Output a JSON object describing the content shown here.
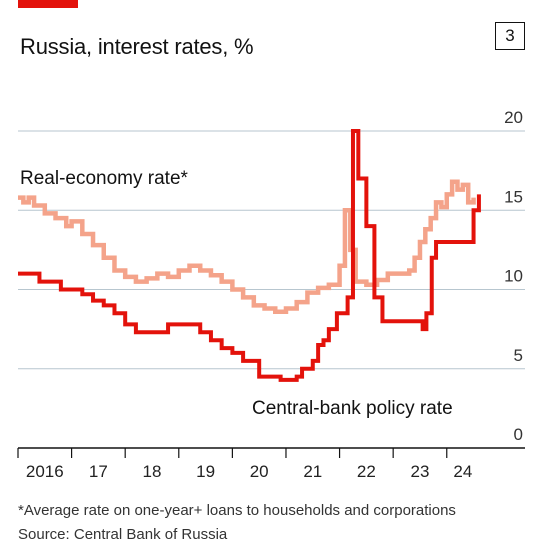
{
  "header": {
    "title": "Russia, interest rates, %",
    "chart_number": "3"
  },
  "footer": {
    "footnote": "*Average rate on one-year+ loans to households and corporations",
    "source": "Source: Central Bank of Russia"
  },
  "colors": {
    "brand_red": "#e3120b",
    "policy_rate": "#e3120b",
    "real_economy_rate": "#f4a38a",
    "grid": "#b7c6cf",
    "axis": "#121212"
  },
  "chart_data": {
    "type": "line",
    "title": "Russia, interest rates, %",
    "xlabel": "",
    "ylabel": "",
    "xlim": [
      2016.0,
      2024.9
    ],
    "ylim": [
      0,
      20
    ],
    "y_ticks": [
      0,
      5,
      10,
      15,
      20
    ],
    "x_tick_labels": [
      {
        "x": 2016.5,
        "label": "2016"
      },
      {
        "x": 2017.5,
        "label": "17"
      },
      {
        "x": 2018.5,
        "label": "18"
      },
      {
        "x": 2019.5,
        "label": "19"
      },
      {
        "x": 2020.5,
        "label": "20"
      },
      {
        "x": 2021.5,
        "label": "21"
      },
      {
        "x": 2022.5,
        "label": "22"
      },
      {
        "x": 2023.5,
        "label": "23"
      },
      {
        "x": 2024.3,
        "label": "24"
      }
    ],
    "grid": true,
    "series": [
      {
        "name": "Real-economy rate*",
        "step": true,
        "x": [
          2016.0,
          2016.1,
          2016.2,
          2016.3,
          2016.5,
          2016.7,
          2016.9,
          2017.0,
          2017.2,
          2017.4,
          2017.6,
          2017.8,
          2018.0,
          2018.2,
          2018.4,
          2018.6,
          2018.8,
          2019.0,
          2019.2,
          2019.4,
          2019.6,
          2019.8,
          2020.0,
          2020.2,
          2020.4,
          2020.6,
          2020.8,
          2021.0,
          2021.2,
          2021.4,
          2021.6,
          2021.8,
          2022.0,
          2022.1,
          2022.2,
          2022.3,
          2022.5,
          2022.7,
          2022.9,
          2023.1,
          2023.3,
          2023.4,
          2023.5,
          2023.6,
          2023.7,
          2023.8,
          2023.9,
          2024.0,
          2024.1,
          2024.2,
          2024.3,
          2024.4,
          2024.5
        ],
        "y": [
          15.8,
          15.5,
          15.8,
          15.3,
          14.8,
          14.5,
          14.0,
          14.3,
          13.5,
          12.8,
          12.0,
          11.2,
          10.8,
          10.5,
          10.7,
          11.0,
          10.8,
          11.2,
          11.5,
          11.2,
          10.9,
          10.5,
          10.0,
          9.5,
          9.0,
          8.8,
          8.6,
          8.8,
          9.2,
          9.8,
          10.1,
          10.3,
          11.5,
          15.0,
          12.5,
          10.5,
          10.3,
          10.6,
          11.0,
          11.0,
          11.2,
          12.0,
          13.0,
          13.8,
          14.5,
          15.5,
          15.2,
          16.0,
          16.8,
          16.3,
          16.6,
          15.5,
          15.8
        ]
      },
      {
        "name": "Central-bank policy rate",
        "step": true,
        "x": [
          2016.0,
          2016.4,
          2016.8,
          2017.2,
          2017.4,
          2017.6,
          2017.8,
          2018.0,
          2018.2,
          2018.4,
          2018.8,
          2019.0,
          2019.4,
          2019.6,
          2019.8,
          2020.0,
          2020.2,
          2020.5,
          2020.9,
          2021.2,
          2021.3,
          2021.5,
          2021.6,
          2021.7,
          2021.8,
          2021.95,
          2022.15,
          2022.25,
          2022.35,
          2022.5,
          2022.65,
          2022.8,
          2023.55,
          2023.62,
          2023.72,
          2023.8,
          2024.5,
          2024.6
        ],
        "y": [
          11.0,
          10.5,
          10.0,
          9.7,
          9.3,
          9.0,
          8.5,
          7.8,
          7.3,
          7.3,
          7.8,
          7.8,
          7.3,
          6.8,
          6.3,
          6.0,
          5.5,
          4.5,
          4.3,
          4.5,
          5.0,
          5.5,
          6.5,
          6.8,
          7.5,
          8.5,
          9.5,
          20.0,
          17.0,
          14.0,
          9.5,
          8.0,
          7.5,
          8.5,
          12.0,
          13.0,
          15.0,
          16.0
        ]
      }
    ],
    "annotations": [
      {
        "text": "Real-economy rate*",
        "series": "Real-economy rate*"
      },
      {
        "text": "Central-bank policy rate",
        "series": "Central-bank policy rate"
      }
    ]
  }
}
